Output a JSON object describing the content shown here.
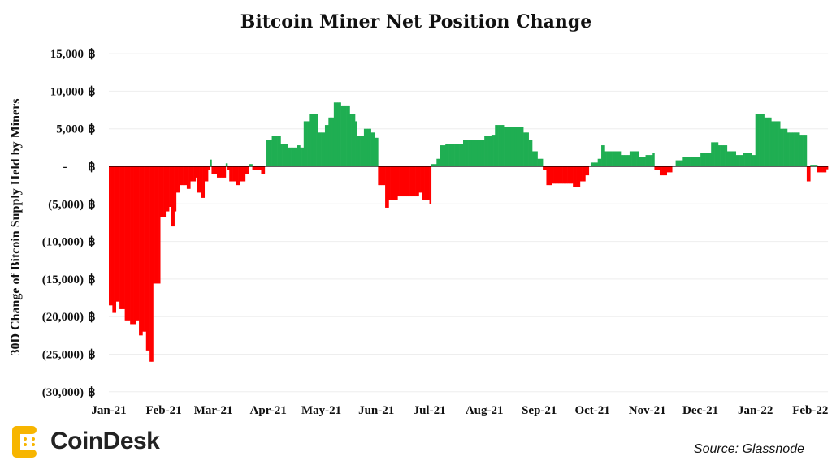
{
  "chart_data": {
    "type": "bar",
    "title": "Bitcoin Miner Net Position Change",
    "ylabel": "30D Change of Bitcoin Supply Held by Miners",
    "xlabel": "",
    "ylim": [
      -30000,
      15000
    ],
    "xlim": [
      "2021-01-01",
      "2022-02-10"
    ],
    "y_ticks": [
      {
        "value": 15000,
        "label": "15,000"
      },
      {
        "value": 10000,
        "label": "10,000"
      },
      {
        "value": 5000,
        "label": "5,000"
      },
      {
        "value": 0,
        "label": "-"
      },
      {
        "value": -5000,
        "label": "(5,000)"
      },
      {
        "value": -10000,
        "label": "(10,000)"
      },
      {
        "value": -15000,
        "label": "(15,000)"
      },
      {
        "value": -20000,
        "label": "(20,000)"
      },
      {
        "value": -25000,
        "label": "(25,000)"
      },
      {
        "value": -30000,
        "label": "(30,000)"
      }
    ],
    "y_unit_symbol": "฿",
    "x_ticks": [
      {
        "date": "2021-01-01",
        "label": "Jan-21"
      },
      {
        "date": "2021-02-01",
        "label": "Feb-21"
      },
      {
        "date": "2021-03-01",
        "label": "Mar-21"
      },
      {
        "date": "2021-04-01",
        "label": "Apr-21"
      },
      {
        "date": "2021-05-01",
        "label": "May-21"
      },
      {
        "date": "2021-06-01",
        "label": "Jun-21"
      },
      {
        "date": "2021-07-01",
        "label": "Jul-21"
      },
      {
        "date": "2021-08-01",
        "label": "Aug-21"
      },
      {
        "date": "2021-09-01",
        "label": "Sep-21"
      },
      {
        "date": "2021-10-01",
        "label": "Oct-21"
      },
      {
        "date": "2021-11-01",
        "label": "Nov-21"
      },
      {
        "date": "2021-12-01",
        "label": "Dec-21"
      },
      {
        "date": "2022-01-01",
        "label": "Jan-22"
      },
      {
        "date": "2022-02-01",
        "label": "Feb-22"
      }
    ],
    "grid": true,
    "colors": {
      "positive": "#1fae52",
      "negative": "#ff0000",
      "grid": "#eeeeee",
      "zero_line": "#000000"
    },
    "points": [
      [
        "2021-01-01",
        -18500
      ],
      [
        "2021-01-03",
        -19500
      ],
      [
        "2021-01-05",
        -18000
      ],
      [
        "2021-01-07",
        -19000
      ],
      [
        "2021-01-10",
        -20500
      ],
      [
        "2021-01-13",
        -21000
      ],
      [
        "2021-01-16",
        -20500
      ],
      [
        "2021-01-18",
        -22500
      ],
      [
        "2021-01-20",
        -22000
      ],
      [
        "2021-01-22",
        -24500
      ],
      [
        "2021-01-24",
        -26000
      ],
      [
        "2021-01-26",
        -15600
      ],
      [
        "2021-01-30",
        -6800
      ],
      [
        "2021-02-02",
        -6000
      ],
      [
        "2021-02-04",
        -5400
      ],
      [
        "2021-02-05",
        -8000
      ],
      [
        "2021-02-07",
        -6000
      ],
      [
        "2021-02-08",
        -3500
      ],
      [
        "2021-02-10",
        -2500
      ],
      [
        "2021-02-14",
        -3000
      ],
      [
        "2021-02-16",
        -2000
      ],
      [
        "2021-02-19",
        -1500
      ],
      [
        "2021-02-20",
        -3500
      ],
      [
        "2021-02-22",
        -4200
      ],
      [
        "2021-02-24",
        -2000
      ],
      [
        "2021-02-26",
        -500
      ],
      [
        "2021-02-27",
        900
      ],
      [
        "2021-02-28",
        -1000
      ],
      [
        "2021-03-03",
        -1500
      ],
      [
        "2021-03-08",
        400
      ],
      [
        "2021-03-09",
        -500
      ],
      [
        "2021-03-10",
        -2000
      ],
      [
        "2021-03-14",
        -2500
      ],
      [
        "2021-03-16",
        -2000
      ],
      [
        "2021-03-19",
        -1000
      ],
      [
        "2021-03-21",
        300
      ],
      [
        "2021-03-23",
        -500
      ],
      [
        "2021-03-28",
        -1000
      ],
      [
        "2021-03-30",
        0
      ],
      [
        "2021-03-31",
        3500
      ],
      [
        "2021-04-03",
        4000
      ],
      [
        "2021-04-08",
        3000
      ],
      [
        "2021-04-12",
        2500
      ],
      [
        "2021-04-17",
        2800
      ],
      [
        "2021-04-19",
        2500
      ],
      [
        "2021-04-21",
        6000
      ],
      [
        "2021-04-24",
        7000
      ],
      [
        "2021-04-29",
        4500
      ],
      [
        "2021-05-03",
        5500
      ],
      [
        "2021-05-05",
        6500
      ],
      [
        "2021-05-08",
        8500
      ],
      [
        "2021-05-12",
        8000
      ],
      [
        "2021-05-17",
        7000
      ],
      [
        "2021-05-20",
        6000
      ],
      [
        "2021-05-21",
        4000
      ],
      [
        "2021-05-25",
        5000
      ],
      [
        "2021-05-29",
        4500
      ],
      [
        "2021-05-31",
        3800
      ],
      [
        "2021-06-02",
        -2500
      ],
      [
        "2021-06-06",
        -5500
      ],
      [
        "2021-06-08",
        -4500
      ],
      [
        "2021-06-13",
        -4000
      ],
      [
        "2021-06-25",
        -3500
      ],
      [
        "2021-06-27",
        -4500
      ],
      [
        "2021-07-01",
        -5000
      ],
      [
        "2021-07-02",
        300
      ],
      [
        "2021-07-05",
        1000
      ],
      [
        "2021-07-07",
        2800
      ],
      [
        "2021-07-10",
        3000
      ],
      [
        "2021-07-20",
        3500
      ],
      [
        "2021-08-01",
        4000
      ],
      [
        "2021-08-05",
        4200
      ],
      [
        "2021-08-07",
        5500
      ],
      [
        "2021-08-12",
        5200
      ],
      [
        "2021-08-23",
        4500
      ],
      [
        "2021-08-26",
        3500
      ],
      [
        "2021-08-28",
        2000
      ],
      [
        "2021-08-31",
        1000
      ],
      [
        "2021-09-03",
        -500
      ],
      [
        "2021-09-05",
        -2500
      ],
      [
        "2021-09-08",
        -2300
      ],
      [
        "2021-09-20",
        -2800
      ],
      [
        "2021-09-24",
        -2000
      ],
      [
        "2021-09-27",
        -1200
      ],
      [
        "2021-09-29",
        0
      ],
      [
        "2021-09-30",
        500
      ],
      [
        "2021-10-04",
        1000
      ],
      [
        "2021-10-06",
        2800
      ],
      [
        "2021-10-08",
        2000
      ],
      [
        "2021-10-17",
        1500
      ],
      [
        "2021-10-22",
        2000
      ],
      [
        "2021-10-27",
        1200
      ],
      [
        "2021-10-31",
        1500
      ],
      [
        "2021-11-04",
        1800
      ],
      [
        "2021-11-05",
        -500
      ],
      [
        "2021-11-08",
        -1200
      ],
      [
        "2021-11-12",
        -800
      ],
      [
        "2021-11-15",
        0
      ],
      [
        "2021-11-17",
        800
      ],
      [
        "2021-11-21",
        1200
      ],
      [
        "2021-12-01",
        1800
      ],
      [
        "2021-12-07",
        3200
      ],
      [
        "2021-12-11",
        2800
      ],
      [
        "2021-12-16",
        2000
      ],
      [
        "2021-12-21",
        1500
      ],
      [
        "2021-12-25",
        1800
      ],
      [
        "2021-12-30",
        1500
      ],
      [
        "2022-01-01",
        7000
      ],
      [
        "2022-01-06",
        6500
      ],
      [
        "2022-01-10",
        6000
      ],
      [
        "2022-01-15",
        5000
      ],
      [
        "2022-01-19",
        4500
      ],
      [
        "2022-01-26",
        4200
      ],
      [
        "2022-01-30",
        -2000
      ],
      [
        "2022-02-01",
        200
      ],
      [
        "2022-02-05",
        -800
      ],
      [
        "2022-02-10",
        -400
      ]
    ]
  },
  "branding": {
    "logo": "CoinDesk"
  },
  "source": "Source: Glassnode"
}
